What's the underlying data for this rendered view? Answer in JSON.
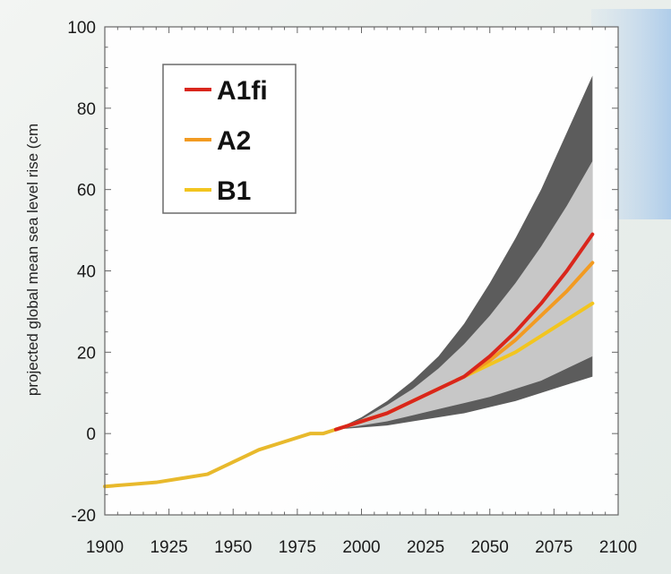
{
  "chart_data": {
    "type": "line",
    "title": "",
    "xlabel": "",
    "ylabel": "projected global mean sea level rise (cm",
    "xlim": [
      1900,
      2100
    ],
    "ylim": [
      -20,
      100
    ],
    "xticks": [
      1900,
      1925,
      1950,
      1975,
      2000,
      2025,
      2050,
      2075,
      2100
    ],
    "yticks": [
      -20,
      0,
      20,
      40,
      60,
      80,
      100
    ],
    "grid": false,
    "legend_position": "top-left",
    "historical": {
      "color": "#e8b92c",
      "x": [
        1900,
        1910,
        1920,
        1930,
        1940,
        1950,
        1960,
        1970,
        1980,
        1985,
        1990
      ],
      "y": [
        -13,
        -12.5,
        -12,
        -11,
        -10,
        -7,
        -4,
        -2,
        0,
        0,
        1
      ]
    },
    "bands": [
      {
        "color": "#5c5c5c",
        "x": [
          1990,
          2000,
          2010,
          2020,
          2030,
          2040,
          2050,
          2060,
          2070,
          2080,
          2090
        ],
        "upper": [
          1,
          4,
          8,
          13,
          19,
          27,
          37,
          48,
          60,
          74,
          88
        ],
        "lower": [
          1,
          1.5,
          2,
          3,
          4,
          5,
          6.5,
          8,
          10,
          12,
          14
        ]
      },
      {
        "color": "#c7c7c7",
        "x": [
          1990,
          2000,
          2010,
          2020,
          2030,
          2040,
          2050,
          2060,
          2070,
          2080,
          2090
        ],
        "upper": [
          1,
          3.5,
          7,
          11,
          16,
          22,
          29,
          37,
          46,
          56,
          67
        ],
        "lower": [
          1,
          2,
          3,
          4.5,
          6,
          7.5,
          9,
          11,
          13,
          16,
          19
        ]
      }
    ],
    "series": [
      {
        "name": "A1fi",
        "color": "#d9261c",
        "x": [
          1990,
          2000,
          2010,
          2020,
          2030,
          2040,
          2050,
          2060,
          2070,
          2080,
          2090
        ],
        "values": [
          1,
          3,
          5,
          8,
          11,
          14,
          19,
          25,
          32,
          40,
          49
        ]
      },
      {
        "name": "A2",
        "color": "#f29b22",
        "x": [
          1990,
          2000,
          2010,
          2020,
          2030,
          2040,
          2050,
          2060,
          2070,
          2080,
          2090
        ],
        "values": [
          1,
          3,
          5,
          8,
          11,
          14,
          18,
          23,
          29,
          35,
          42
        ]
      },
      {
        "name": "B1",
        "color": "#f2c51f",
        "x": [
          1990,
          2000,
          2010,
          2020,
          2030,
          2040,
          2050,
          2060,
          2070,
          2080,
          2090
        ],
        "values": [
          1,
          3,
          5,
          8,
          11,
          14,
          17,
          20,
          24,
          28,
          32
        ]
      }
    ]
  }
}
